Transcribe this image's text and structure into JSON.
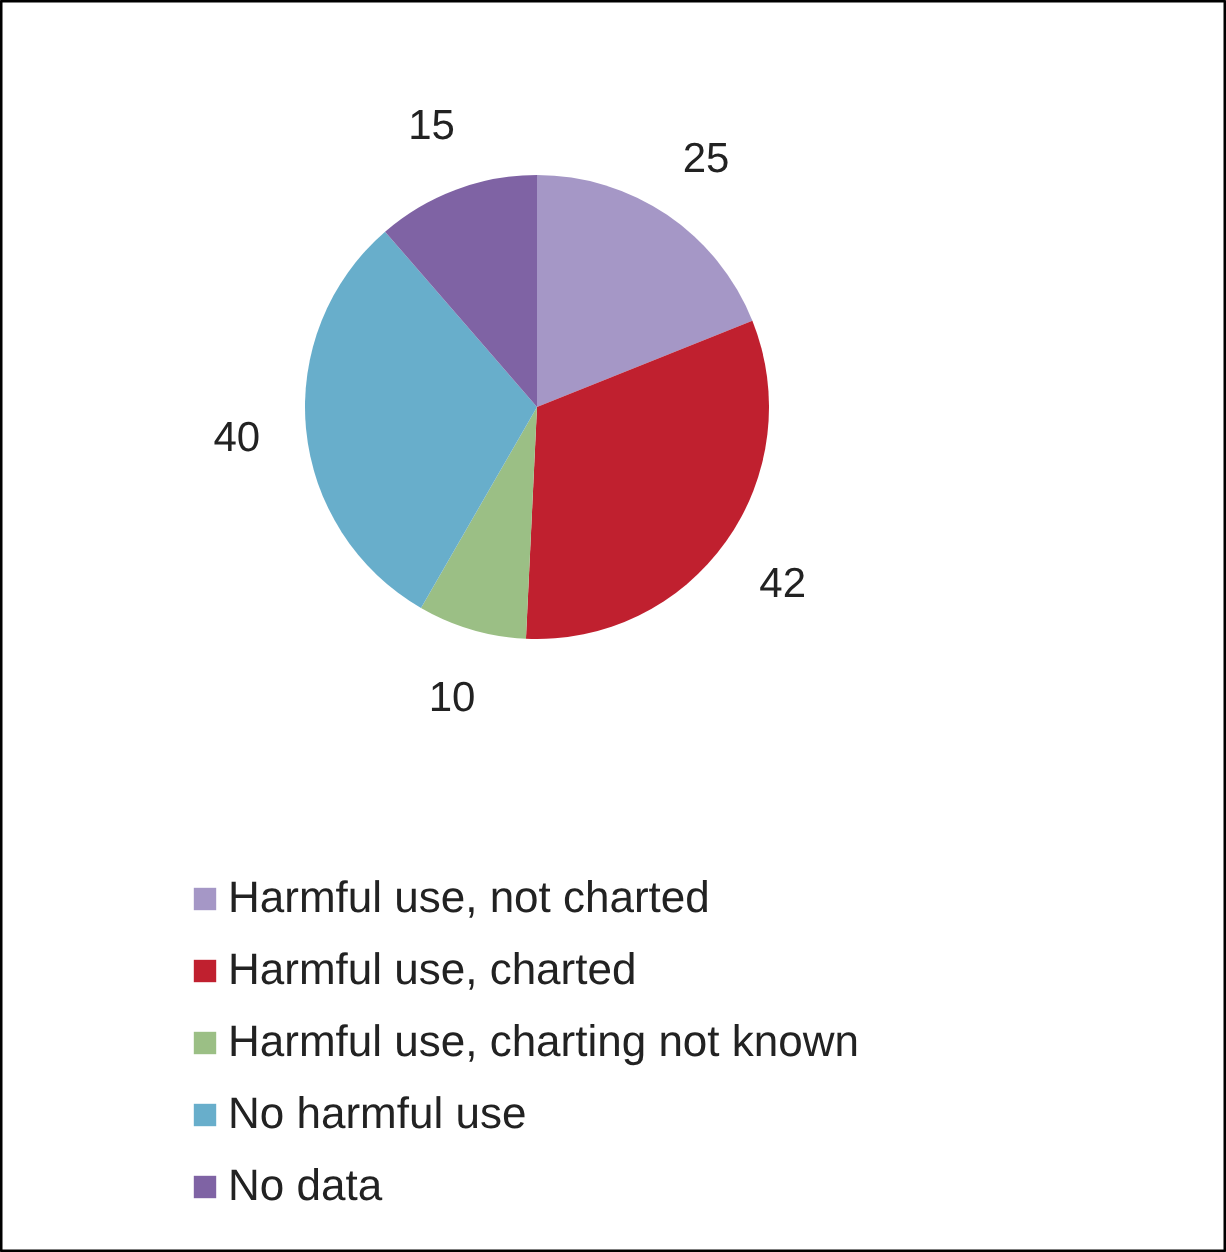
{
  "chart_data": {
    "type": "pie",
    "categories": [
      "Harmful use, not charted",
      "Harmful use, charted",
      "Harmful use, charting not known",
      "No harmful use",
      "No data"
    ],
    "values": [
      25,
      42,
      10,
      40,
      15
    ],
    "colors": [
      "#a597c6",
      "#c0202f",
      "#9bbf85",
      "#68aecb",
      "#7f63a4"
    ],
    "data_labels": true,
    "legend": "bottom"
  }
}
